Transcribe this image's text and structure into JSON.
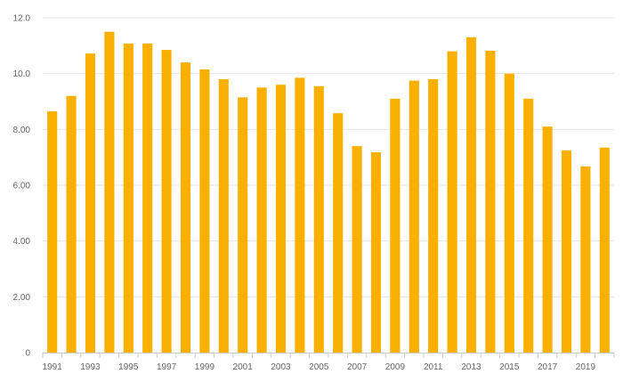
{
  "chart_data": {
    "type": "bar",
    "title": "",
    "xlabel": "",
    "ylabel": "",
    "ylim": [
      0,
      12
    ],
    "y_ticks": [
      0,
      2,
      4,
      6,
      8,
      10,
      12
    ],
    "y_tick_labels": [
      "0",
      "2.00",
      "4.00",
      "6.00",
      "8.00",
      "10.0",
      "12.0"
    ],
    "categories": [
      "1991",
      "1992",
      "1993",
      "1994",
      "1995",
      "1996",
      "1997",
      "1998",
      "1999",
      "2000",
      "2001",
      "2002",
      "2003",
      "2004",
      "2005",
      "2006",
      "2007",
      "2008",
      "2009",
      "2010",
      "2011",
      "2012",
      "2013",
      "2014",
      "2015",
      "2016",
      "2017",
      "2018",
      "2019",
      "2020"
    ],
    "x_tick_labels": [
      "1991",
      "1993",
      "1995",
      "1997",
      "1999",
      "2001",
      "2003",
      "2005",
      "2007",
      "2009",
      "2011",
      "2013",
      "2015",
      "2017",
      "2019"
    ],
    "values": [
      8.65,
      9.2,
      10.72,
      11.5,
      11.08,
      11.08,
      10.85,
      10.4,
      10.15,
      9.8,
      9.15,
      9.5,
      9.6,
      9.85,
      9.55,
      8.58,
      7.4,
      7.18,
      9.1,
      9.75,
      9.8,
      10.8,
      11.3,
      10.82,
      10.0,
      9.1,
      8.1,
      7.25,
      6.67,
      7.35
    ],
    "grid": true,
    "legend": "none",
    "bar_color": "#f9b000"
  }
}
